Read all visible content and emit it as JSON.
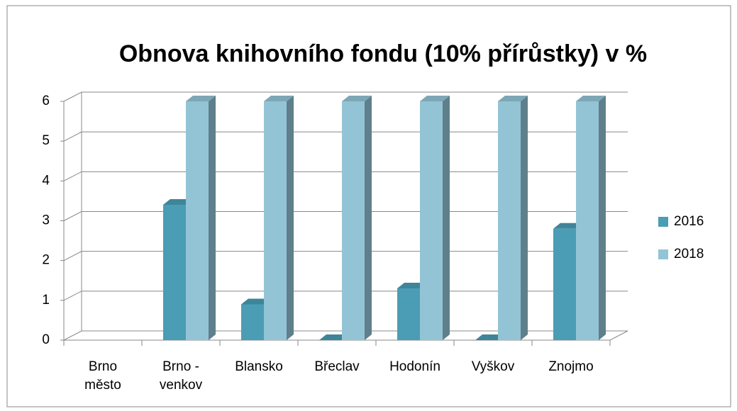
{
  "chart_data": {
    "type": "bar3d",
    "title": "Obnova knihovního fondu (10% přírůstky) v %",
    "categories": [
      "Brno město",
      "Brno - venkov",
      "Blansko",
      "Břeclav",
      "Hodonín",
      "Vyškov",
      "Znojmo"
    ],
    "series": [
      {
        "name": "2016",
        "color": "#4a9db5",
        "values": [
          null,
          3.4,
          0.9,
          0,
          1.3,
          0,
          2.8
        ]
      },
      {
        "name": "2018",
        "color": "#93c4d6",
        "values": [
          null,
          6,
          6,
          6,
          6,
          6,
          6
        ]
      }
    ],
    "ylim": [
      0,
      6
    ],
    "yticks": [
      0,
      1,
      2,
      3,
      4,
      5,
      6
    ],
    "grid": true,
    "legend": "right"
  }
}
